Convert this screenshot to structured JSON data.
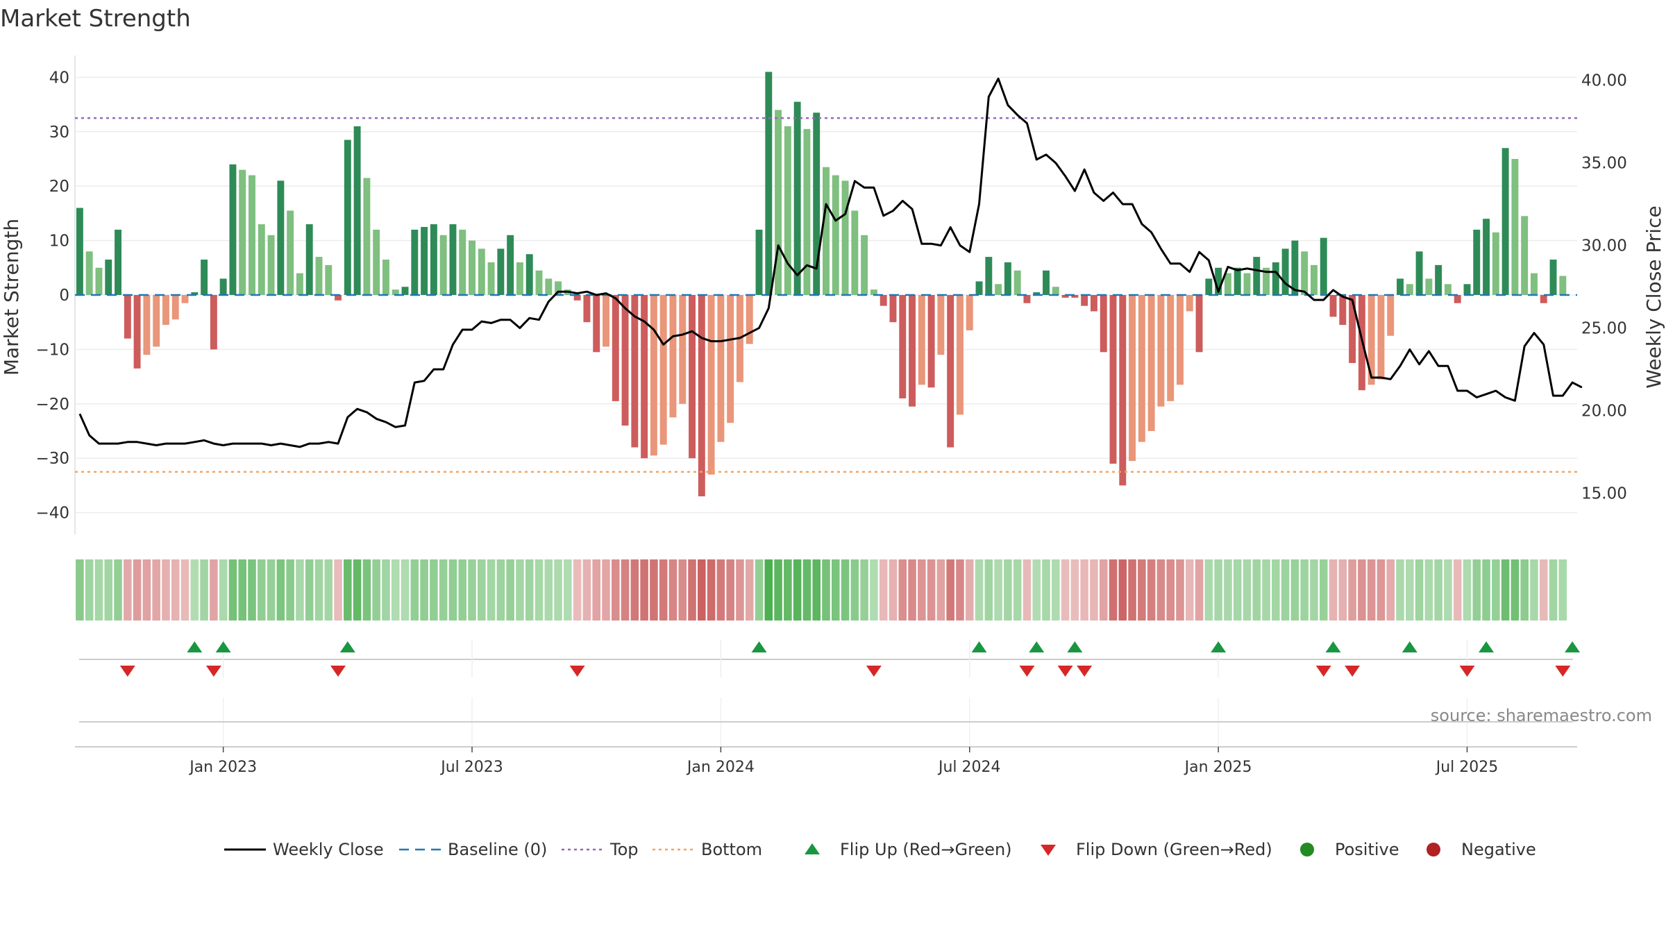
{
  "title": "Market Strength",
  "source": "source: sharemaestro.com",
  "colors": {
    "pos_dark": "#2e8b57",
    "pos_light": "#7fbf7f",
    "neg_dark": "#cd5c5c",
    "neg_light": "#e9967a",
    "line": "#000000",
    "baseline": "#1f77b4",
    "top": "#9467bd",
    "bottom": "#f4a460",
    "flip_up": "#1a9641",
    "flip_down": "#d62728",
    "positive": "#228b22",
    "negative": "#b22222"
  },
  "legend": [
    {
      "type": "line",
      "label": "Weekly Close",
      "color": "#000000"
    },
    {
      "type": "dash",
      "label": "Baseline (0)",
      "color": "#1f77b4"
    },
    {
      "type": "dot",
      "label": "Top",
      "color": "#9467bd"
    },
    {
      "type": "dot",
      "label": "Bottom",
      "color": "#f4a460"
    },
    {
      "type": "tri-up",
      "label": "Flip Up (Red→Green)",
      "color": "#1a9641"
    },
    {
      "type": "tri-down",
      "label": "Flip Down (Green→Red)",
      "color": "#d62728"
    },
    {
      "type": "circle",
      "label": "Positive",
      "color": "#228b22"
    },
    {
      "type": "circle",
      "label": "Negative",
      "color": "#b22222"
    }
  ],
  "chart_data": {
    "type": "bar",
    "xlabel": "",
    "ylabel": "Market Strength",
    "y2label": "Weekly Close Price",
    "ylim": [
      -44,
      44
    ],
    "y2lim": [
      12.5,
      41.5
    ],
    "yticks": [
      40,
      30,
      20,
      10,
      0,
      -10,
      -20,
      -30,
      -40
    ],
    "yticklabels": [
      "40",
      "30",
      "20",
      "10",
      "0",
      "−10",
      "−20",
      "−30",
      "−40"
    ],
    "y2ticks": [
      40,
      35,
      30,
      25,
      20,
      15
    ],
    "y2ticklabels": [
      "40.00",
      "35.00",
      "30.00",
      "25.00",
      "20.00",
      "15.00"
    ],
    "xticks": [
      16,
      42,
      68,
      94,
      120,
      146
    ],
    "xticklabels": [
      "Jan 2023",
      "Jul 2023",
      "Jan 2024",
      "Jul 2024",
      "Jan 2025",
      "Jul 2025"
    ],
    "x_domain": [
      0.5,
      157.5
    ],
    "top_level": 32.5,
    "bottom_level": -32.5,
    "baseline": 0,
    "bars": [
      16,
      8,
      5,
      6.5,
      12,
      -8,
      -13.5,
      -11,
      -9.5,
      -5.5,
      -4.5,
      -1.5,
      0.5,
      6.5,
      -10,
      3,
      24,
      23,
      22,
      13,
      11,
      21,
      15.5,
      4,
      13,
      7,
      5.5,
      -1,
      28.5,
      31,
      21.5,
      12,
      6.5,
      1,
      1.5,
      12,
      12.5,
      13,
      11,
      13,
      12,
      10,
      8.5,
      6,
      8.5,
      11,
      6,
      7.5,
      4.5,
      3,
      2.5,
      1,
      -1,
      -5,
      -10.5,
      -9.5,
      -19.5,
      -24,
      -28,
      -30,
      -29.5,
      -27.5,
      -22.5,
      -20,
      -30,
      -37,
      -33,
      -27,
      -23.5,
      -16,
      -9,
      12,
      41,
      34,
      31,
      35.5,
      30.5,
      33.5,
      23.5,
      22,
      21,
      15.5,
      11,
      1,
      -2,
      -5,
      -19,
      -20.5,
      -16.5,
      -17,
      -11,
      -28,
      -22,
      -6.5,
      2.5,
      7,
      2,
      6,
      4.5,
      -1.5,
      0.5,
      4.5,
      1.5,
      -0.5,
      -0.5,
      -2,
      -3,
      -10.5,
      -31,
      -35,
      -30.5,
      -27,
      -25,
      -20.5,
      -19.5,
      -16.5,
      -3,
      -10.5,
      3,
      5,
      4,
      5,
      4,
      7,
      5,
      6,
      8.5,
      10,
      8,
      5.5,
      10.5,
      -4,
      -5.5,
      -12.5,
      -17.5,
      -16.5,
      -15.5,
      -7.5,
      3,
      2,
      8,
      3,
      5.5,
      2,
      -1.5,
      2,
      12,
      14,
      11.5,
      27,
      25,
      14.5,
      4,
      -1.5,
      6.5,
      3.5
    ],
    "close": [
      [
        1,
        19.8
      ],
      [
        2,
        18.5
      ],
      [
        3,
        18.0
      ],
      [
        4,
        18.0
      ],
      [
        5,
        18.0
      ],
      [
        6,
        18.1
      ],
      [
        7,
        18.1
      ],
      [
        8,
        18.0
      ],
      [
        9,
        17.9
      ],
      [
        10,
        18.0
      ],
      [
        11,
        18.0
      ],
      [
        12,
        18.0
      ],
      [
        13,
        18.1
      ],
      [
        14,
        18.2
      ],
      [
        15,
        18.0
      ],
      [
        16,
        17.9
      ],
      [
        17,
        18.0
      ],
      [
        18,
        18.0
      ],
      [
        19,
        18.0
      ],
      [
        20,
        18.0
      ],
      [
        21,
        17.9
      ],
      [
        22,
        18.0
      ],
      [
        23,
        17.9
      ],
      [
        24,
        17.8
      ],
      [
        25,
        18.0
      ],
      [
        26,
        18.0
      ],
      [
        27,
        18.1
      ],
      [
        28,
        18.0
      ],
      [
        29,
        19.6
      ],
      [
        30,
        20.1
      ],
      [
        31,
        19.9
      ],
      [
        32,
        19.5
      ],
      [
        33,
        19.3
      ],
      [
        34,
        19.0
      ],
      [
        35,
        19.1
      ],
      [
        36,
        21.7
      ],
      [
        37,
        21.8
      ],
      [
        38,
        22.5
      ],
      [
        39,
        22.5
      ],
      [
        40,
        24.0
      ],
      [
        41,
        24.9
      ],
      [
        42,
        24.9
      ],
      [
        43,
        25.4
      ],
      [
        44,
        25.3
      ],
      [
        45,
        25.5
      ],
      [
        46,
        25.5
      ],
      [
        47,
        25.0
      ],
      [
        48,
        25.6
      ],
      [
        49,
        25.5
      ],
      [
        50,
        26.6
      ],
      [
        51,
        27.2
      ],
      [
        52,
        27.2
      ],
      [
        53,
        27.1
      ],
      [
        54,
        27.2
      ],
      [
        55,
        27.0
      ],
      [
        56,
        27.1
      ],
      [
        57,
        26.8
      ],
      [
        58,
        26.2
      ],
      [
        59,
        25.7
      ],
      [
        60,
        25.4
      ],
      [
        61,
        24.9
      ],
      [
        62,
        24.0
      ],
      [
        63,
        24.5
      ],
      [
        64,
        24.6
      ],
      [
        65,
        24.8
      ],
      [
        66,
        24.4
      ],
      [
        67,
        24.2
      ],
      [
        68,
        24.2
      ],
      [
        69,
        24.3
      ],
      [
        70,
        24.4
      ],
      [
        71,
        24.7
      ],
      [
        72,
        25.0
      ],
      [
        73,
        26.2
      ],
      [
        74,
        30.0
      ],
      [
        75,
        28.9
      ],
      [
        76,
        28.2
      ],
      [
        77,
        28.8
      ],
      [
        78,
        28.6
      ],
      [
        79,
        32.5
      ],
      [
        80,
        31.5
      ],
      [
        81,
        31.9
      ],
      [
        82,
        33.9
      ],
      [
        83,
        33.5
      ],
      [
        84,
        33.5
      ],
      [
        85,
        31.8
      ],
      [
        86,
        32.1
      ],
      [
        87,
        32.7
      ],
      [
        88,
        32.2
      ],
      [
        89,
        30.1
      ],
      [
        90,
        30.1
      ],
      [
        91,
        30.0
      ],
      [
        92,
        31.1
      ],
      [
        93,
        30.0
      ],
      [
        94,
        29.6
      ],
      [
        95,
        32.5
      ],
      [
        96,
        39.0
      ],
      [
        97,
        40.1
      ],
      [
        98,
        38.5
      ],
      [
        99,
        37.9
      ],
      [
        100,
        37.4
      ],
      [
        101,
        35.2
      ],
      [
        102,
        35.5
      ],
      [
        103,
        35.0
      ],
      [
        104,
        34.2
      ],
      [
        105,
        33.3
      ],
      [
        106,
        34.6
      ],
      [
        107,
        33.2
      ],
      [
        108,
        32.7
      ],
      [
        109,
        33.2
      ],
      [
        110,
        32.5
      ],
      [
        111,
        32.5
      ],
      [
        112,
        31.3
      ],
      [
        113,
        30.8
      ],
      [
        114,
        29.8
      ],
      [
        115,
        28.9
      ],
      [
        116,
        28.9
      ],
      [
        117,
        28.4
      ],
      [
        118,
        29.6
      ],
      [
        119,
        29.1
      ],
      [
        120,
        27.2
      ],
      [
        121,
        28.7
      ],
      [
        122,
        28.5
      ],
      [
        123,
        28.6
      ],
      [
        124,
        28.5
      ],
      [
        125,
        28.4
      ],
      [
        126,
        28.4
      ],
      [
        127,
        27.7
      ],
      [
        128,
        27.3
      ],
      [
        129,
        27.2
      ],
      [
        130,
        26.7
      ],
      [
        131,
        26.7
      ],
      [
        132,
        27.3
      ],
      [
        133,
        26.9
      ],
      [
        134,
        26.7
      ],
      [
        135,
        24.3
      ],
      [
        136,
        22.0
      ],
      [
        137,
        22.0
      ],
      [
        138,
        21.9
      ],
      [
        139,
        22.7
      ],
      [
        140,
        23.7
      ],
      [
        141,
        22.8
      ],
      [
        142,
        23.6
      ],
      [
        143,
        22.7
      ],
      [
        144,
        22.7
      ],
      [
        145,
        21.2
      ],
      [
        146,
        21.2
      ],
      [
        147,
        20.8
      ],
      [
        148,
        21.0
      ],
      [
        149,
        21.2
      ],
      [
        150,
        20.8
      ],
      [
        151,
        20.6
      ],
      [
        152,
        23.9
      ],
      [
        153,
        24.7
      ],
      [
        154,
        24.0
      ],
      [
        155,
        20.9
      ],
      [
        156,
        20.9
      ],
      [
        157,
        21.7
      ],
      [
        158,
        21.4
      ]
    ],
    "flip_up": [
      13,
      16,
      29,
      72,
      95,
      101,
      105,
      120,
      132,
      140,
      148,
      157
    ],
    "flip_down": [
      6,
      15,
      28,
      53,
      84,
      100,
      104,
      106,
      131,
      134,
      146,
      156
    ]
  }
}
